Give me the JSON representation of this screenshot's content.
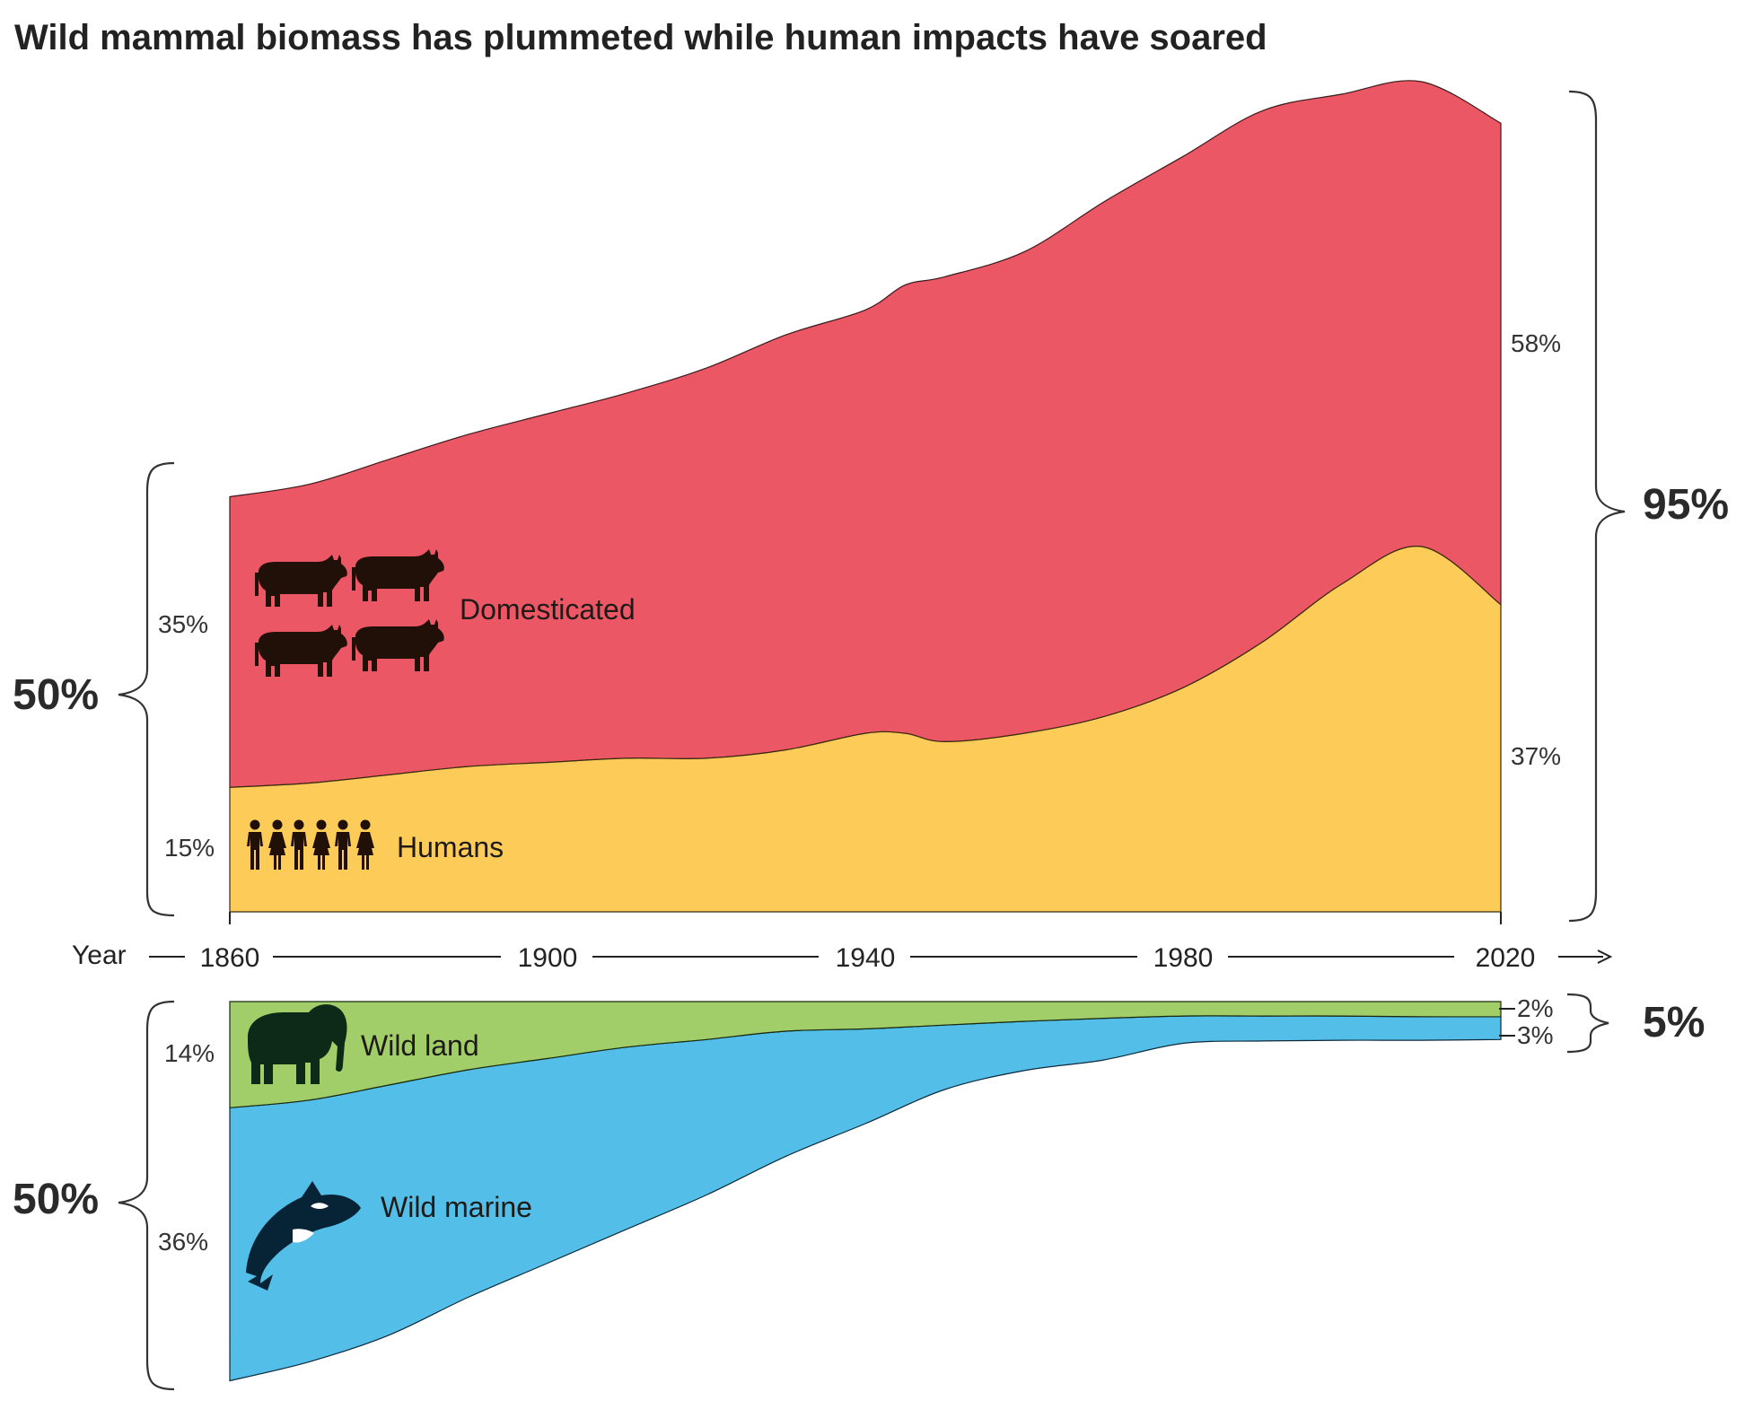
{
  "title": "Wild mammal biomass has plummeted while human impacts have soared",
  "colors": {
    "domesticated": "#EC5766",
    "humans": "#FDCB58",
    "wild_land": "#A1CE68",
    "wild_marine": "#53BEE8",
    "icon": "#201007",
    "icon_wild": "#0D2A18",
    "icon_marine": "#072436"
  },
  "axis": {
    "label": "Year",
    "ticks": [
      "1860",
      "1900",
      "1940",
      "1980",
      "2020"
    ]
  },
  "labels": {
    "domesticated": "Domesticated",
    "humans": "Humans",
    "wild_land": "Wild land",
    "wild_marine": "Wild marine"
  },
  "annotations": {
    "left_top_domesticated": "35%",
    "left_top_humans": "15%",
    "left_top_total": "50%",
    "left_bottom_wild_land": "14%",
    "left_bottom_wild_marine": "36%",
    "left_bottom_total": "50%",
    "right_domesticated": "58%",
    "right_humans": "37%",
    "right_top_total": "95%",
    "right_wild_land": "2%",
    "right_wild_marine": "3%",
    "right_bottom_total": "5%"
  },
  "chart_data": {
    "type": "area",
    "title": "Wild mammal biomass has plummeted while human impacts have soared",
    "xlabel": "Year",
    "xlim": [
      1860,
      2020
    ],
    "x_ticks": [
      1860,
      1900,
      1940,
      1980,
      2020
    ],
    "unit": "share of mammal biomass in 1860 (%)",
    "top_panel": {
      "stacking": "stacked upward from baseline",
      "x": [
        1860,
        1870,
        1880,
        1890,
        1900,
        1910,
        1920,
        1930,
        1940,
        1945,
        1950,
        1960,
        1970,
        1980,
        1990,
        2000,
        2010,
        2020
      ],
      "series": [
        {
          "name": "Humans",
          "values": [
            15,
            15.5,
            16.5,
            17.5,
            18,
            18.5,
            18.5,
            19.5,
            21.5,
            21.5,
            20.5,
            21.5,
            23.5,
            27,
            32.5,
            39.5,
            44,
            37
          ]
        },
        {
          "name": "Domesticated",
          "values": [
            35,
            36,
            38,
            40,
            42,
            44,
            47,
            50,
            51,
            54,
            56,
            58,
            62,
            64,
            64,
            59,
            56,
            58
          ]
        }
      ]
    },
    "bottom_panel": {
      "stacking": "stacked downward from top line",
      "x": [
        1860,
        1870,
        1880,
        1890,
        1900,
        1910,
        1920,
        1930,
        1940,
        1950,
        1960,
        1970,
        1980,
        1990,
        2000,
        2010,
        2020
      ],
      "series": [
        {
          "name": "Wild land",
          "values": [
            14,
            13,
            11,
            9,
            7.5,
            6,
            5,
            3.9,
            3.6,
            3.1,
            2.6,
            2.2,
            1.9,
            1.9,
            1.9,
            2,
            2
          ]
        },
        {
          "name": "Wild marine",
          "values": [
            36,
            34.5,
            33,
            30,
            27,
            24,
            20.5,
            16.5,
            12.5,
            8.5,
            6.5,
            5.5,
            3.6,
            3.3,
            3.2,
            3.1,
            3
          ]
        }
      ]
    },
    "totals": {
      "1860": {
        "humans_and_domesticated": 50,
        "wild": 50
      },
      "2020": {
        "humans_and_domesticated": 95,
        "wild": 5
      }
    }
  }
}
